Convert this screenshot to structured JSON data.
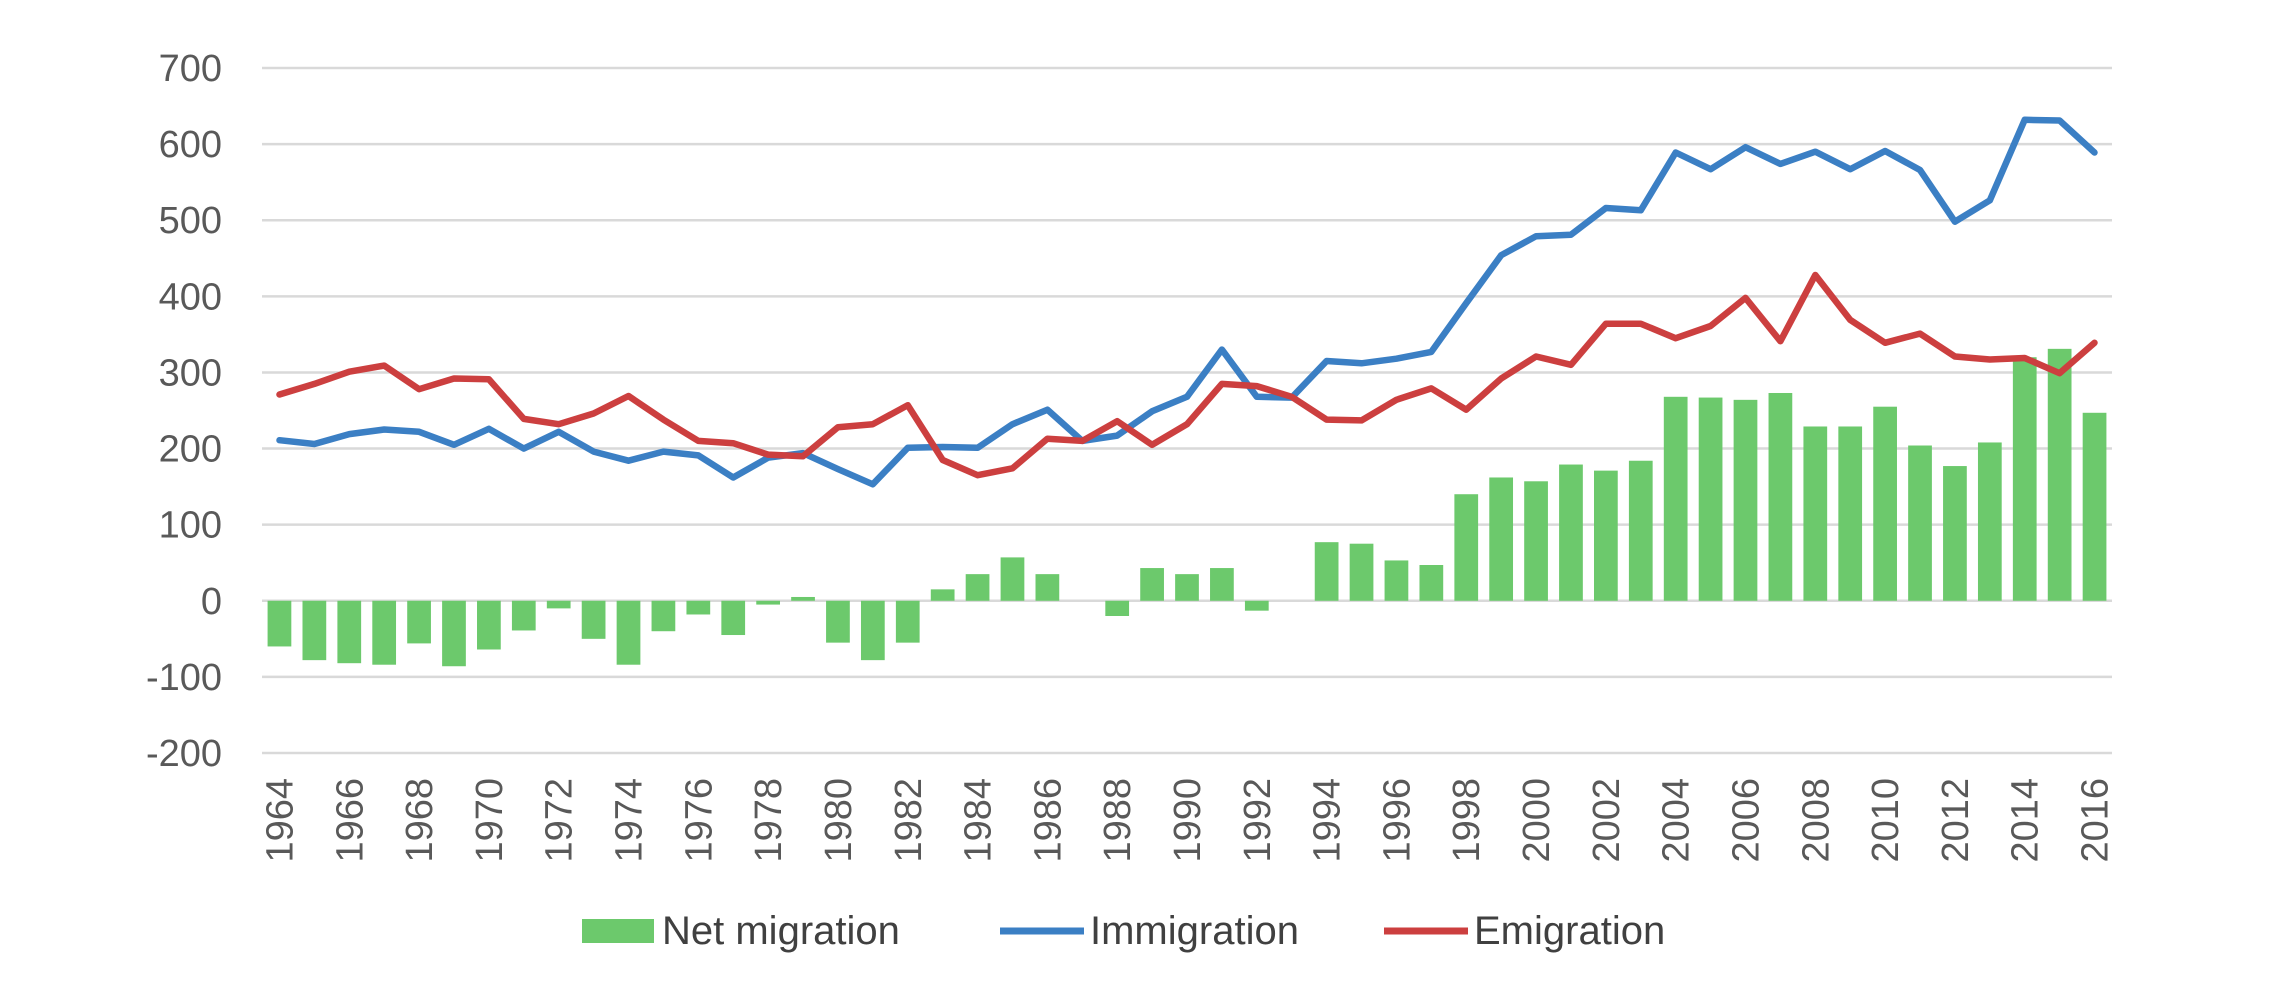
{
  "chart_data": {
    "type": "bar+line",
    "title": "",
    "xlabel": "",
    "ylabel": "",
    "ylim": [
      -200,
      700
    ],
    "yticks": [
      -200,
      -100,
      0,
      100,
      200,
      300,
      400,
      500,
      600,
      700
    ],
    "grid": true,
    "legend_position": "bottom",
    "colors": {
      "net": "#6cc96c",
      "immigration": "#3b7fc4",
      "emigration": "#cc3f3f",
      "grid": "#d9d9d9",
      "text": "#595959"
    },
    "x": [
      1964,
      1965,
      1966,
      1967,
      1968,
      1969,
      1970,
      1971,
      1972,
      1973,
      1974,
      1975,
      1976,
      1977,
      1978,
      1979,
      1980,
      1981,
      1982,
      1983,
      1984,
      1985,
      1986,
      1987,
      1988,
      1989,
      1990,
      1991,
      1992,
      1993,
      1994,
      1995,
      1996,
      1997,
      1998,
      1999,
      2000,
      2001,
      2002,
      2003,
      2004,
      2005,
      2006,
      2007,
      2008,
      2009,
      2010,
      2011,
      2012,
      2013,
      2014,
      2015,
      2016
    ],
    "xticks": [
      "1964",
      "1966",
      "1968",
      "1970",
      "1972",
      "1974",
      "1976",
      "1978",
      "1980",
      "1982",
      "1984",
      "1986",
      "1988",
      "1990",
      "1992",
      "1994",
      "1996",
      "1998",
      "2000",
      "2002",
      "2004",
      "2006",
      "2008",
      "2010",
      "2012",
      "2014",
      "2016"
    ],
    "series": [
      {
        "name": "Net migration",
        "kind": "bar",
        "values": [
          -60,
          -78,
          -82,
          -84,
          -56,
          -86,
          -64,
          -39,
          -10,
          -50,
          -84,
          -40,
          -18,
          -45,
          -5,
          5,
          -55,
          -78,
          -55,
          15,
          35,
          57,
          35,
          0,
          -20,
          43,
          35,
          43,
          -13,
          0,
          77,
          75,
          53,
          47,
          140,
          162,
          157,
          179,
          171,
          184,
          268,
          267,
          264,
          273,
          229,
          229,
          255,
          204,
          177,
          208,
          320,
          331,
          247
        ]
      },
      {
        "name": "Immigration",
        "kind": "line",
        "values": [
          211,
          206,
          219,
          225,
          222,
          205,
          226,
          200,
          222,
          196,
          184,
          196,
          191,
          162,
          188,
          194,
          173,
          153,
          201,
          202,
          201,
          232,
          251,
          210,
          217,
          249,
          268,
          330,
          268,
          267,
          315,
          312,
          318,
          327,
          391,
          454,
          479,
          481,
          516,
          513,
          589,
          567,
          596,
          574,
          590,
          567,
          591,
          566,
          498,
          526,
          632,
          631,
          589
        ]
      },
      {
        "name": "Emigration",
        "kind": "line",
        "values": [
          271,
          285,
          301,
          309,
          278,
          292,
          291,
          239,
          232,
          246,
          269,
          238,
          210,
          207,
          192,
          190,
          228,
          232,
          257,
          185,
          165,
          174,
          213,
          210,
          236,
          205,
          232,
          285,
          282,
          268,
          238,
          237,
          264,
          279,
          251,
          292,
          321,
          310,
          364,
          364,
          345,
          361,
          398,
          341,
          428,
          369,
          339,
          351,
          321,
          317,
          319,
          299,
          339
        ]
      }
    ]
  }
}
